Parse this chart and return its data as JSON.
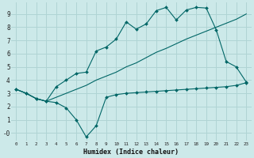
{
  "xlabel": "Humidex (Indice chaleur)",
  "background_color": "#cce9e9",
  "grid_color": "#b0d4d4",
  "line_color": "#006666",
  "xlim": [
    -0.5,
    23.5
  ],
  "ylim": [
    -0.6,
    9.85
  ],
  "xticks": [
    0,
    1,
    2,
    3,
    4,
    5,
    6,
    7,
    8,
    9,
    10,
    11,
    12,
    13,
    14,
    15,
    16,
    17,
    18,
    19,
    20,
    21,
    22,
    23
  ],
  "yticks": [
    0,
    1,
    2,
    3,
    4,
    5,
    6,
    7,
    8,
    9
  ],
  "ytick_labels": [
    "-0",
    "1",
    "2",
    "3",
    "4",
    "5",
    "6",
    "7",
    "8",
    "9"
  ],
  "line1_x": [
    0,
    1,
    2,
    3,
    4,
    5,
    6,
    7,
    8,
    9,
    10,
    11,
    12,
    13,
    14,
    15,
    16,
    17,
    18,
    19,
    20,
    21,
    22,
    23
  ],
  "line1_y": [
    3.3,
    3.0,
    2.6,
    2.4,
    2.3,
    1.9,
    1.0,
    -0.3,
    0.55,
    2.7,
    2.9,
    3.0,
    3.05,
    3.1,
    3.15,
    3.2,
    3.25,
    3.3,
    3.35,
    3.4,
    3.45,
    3.5,
    3.6,
    3.8
  ],
  "line2_x": [
    0,
    1,
    2,
    3,
    4,
    5,
    6,
    7,
    8,
    9,
    10,
    11,
    12,
    13,
    14,
    15,
    16,
    17,
    18,
    19,
    20,
    21,
    22,
    23
  ],
  "line2_y": [
    3.3,
    3.0,
    2.6,
    2.4,
    2.7,
    3.0,
    3.3,
    3.6,
    4.0,
    4.3,
    4.6,
    5.0,
    5.3,
    5.7,
    6.1,
    6.4,
    6.75,
    7.1,
    7.4,
    7.7,
    8.0,
    8.3,
    8.6,
    9.0
  ],
  "line3_x": [
    0,
    1,
    2,
    3,
    4,
    5,
    6,
    7,
    8,
    9,
    10,
    11,
    12,
    13,
    14,
    15,
    16,
    17,
    18,
    19,
    20,
    21,
    22,
    23
  ],
  "line3_y": [
    3.3,
    3.0,
    2.6,
    2.4,
    3.5,
    4.0,
    4.5,
    4.6,
    6.2,
    6.5,
    7.1,
    8.4,
    7.85,
    8.25,
    9.25,
    9.5,
    8.55,
    9.3,
    9.5,
    9.45,
    7.8,
    5.4,
    5.0,
    3.85
  ]
}
